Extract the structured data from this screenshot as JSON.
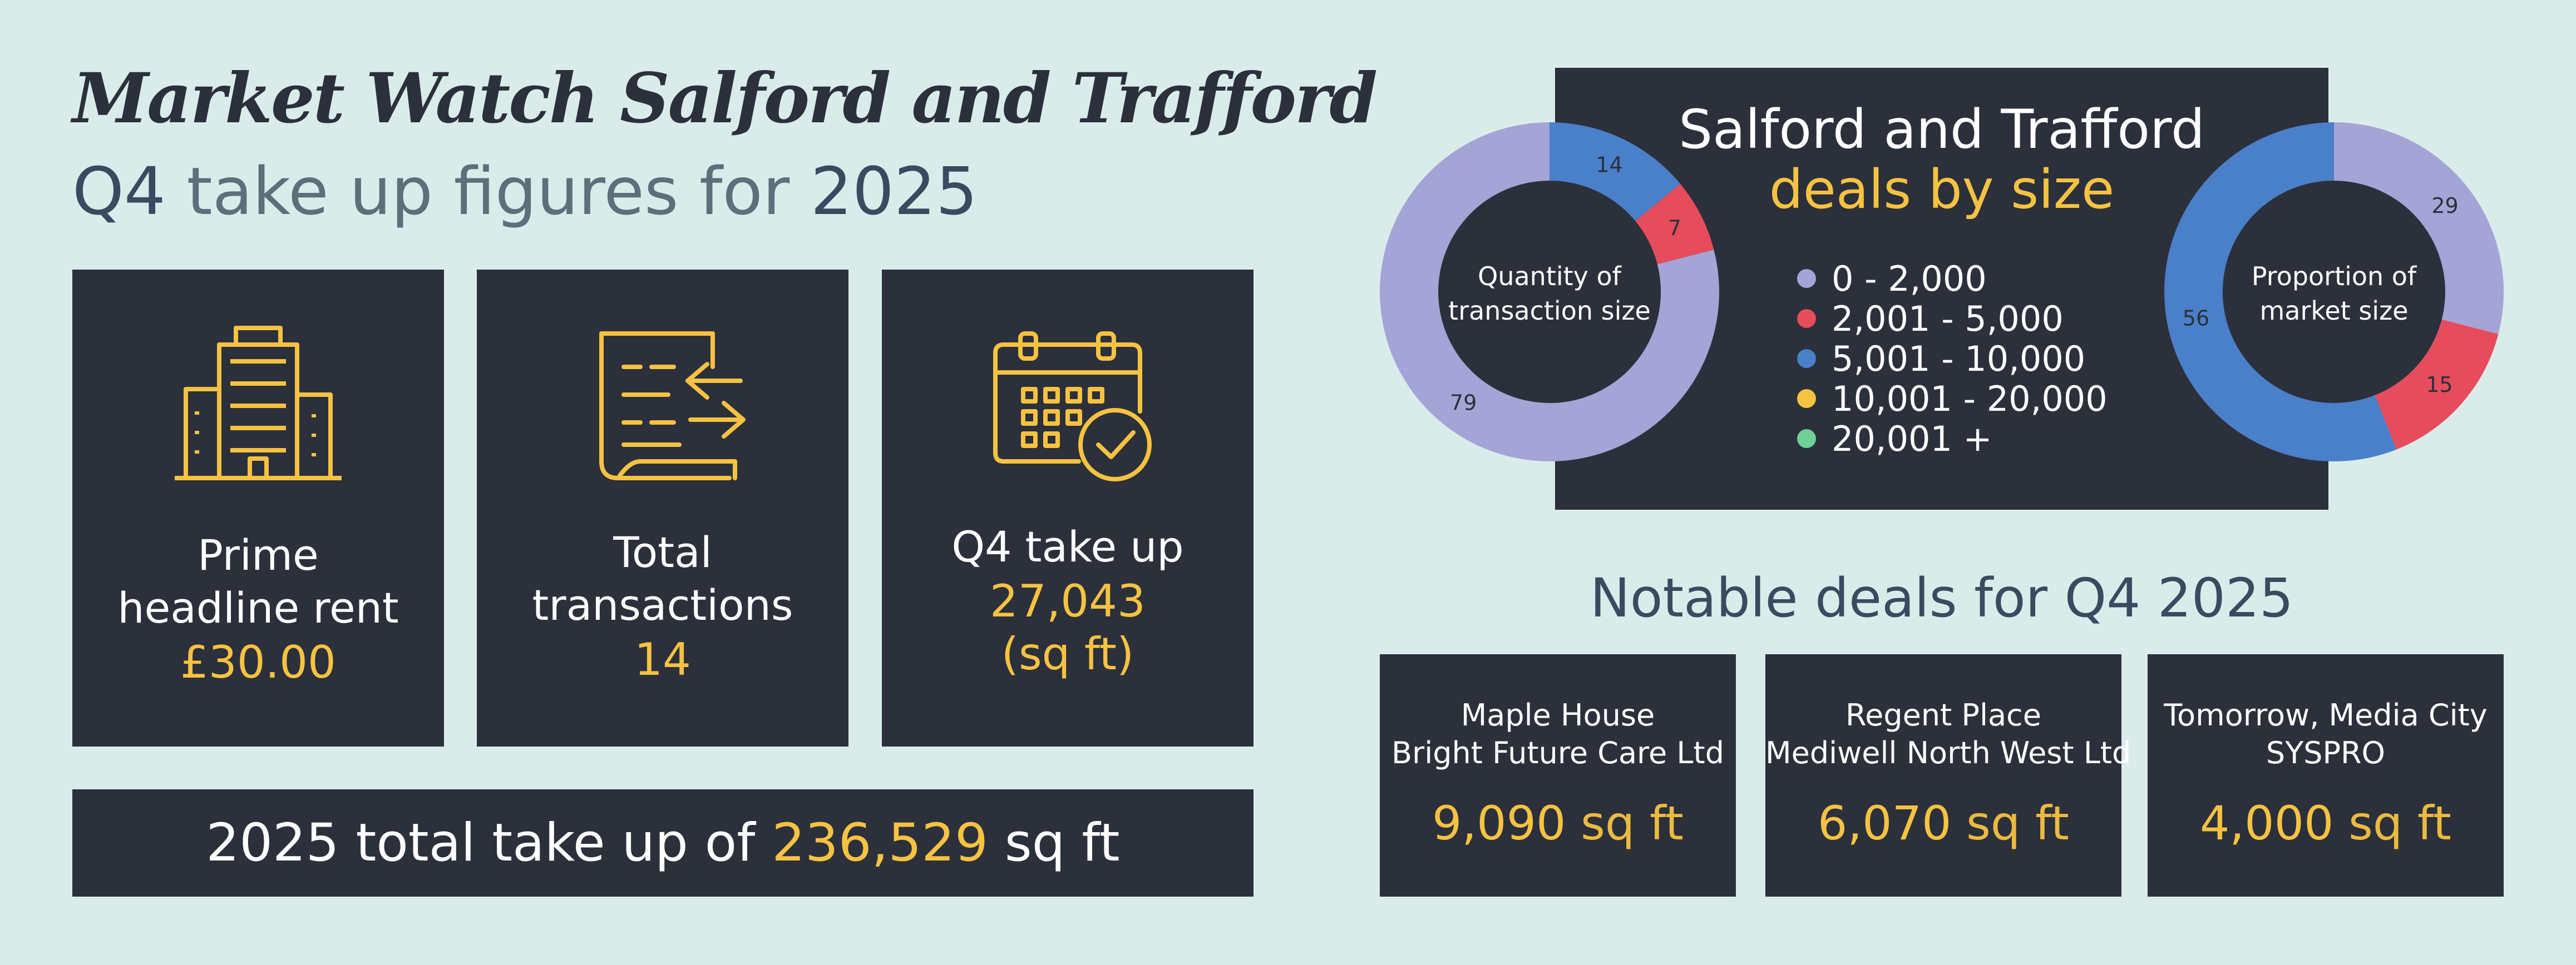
{
  "header": {
    "title": "Market Watch Salford and Trafford",
    "subtitle_quarter": "Q4",
    "subtitle_middle": " take up figures for ",
    "subtitle_year": "2025"
  },
  "cards": [
    {
      "icon": "office-building-icon",
      "line1": "Prime",
      "line2": "headline rent",
      "value": "£30.00"
    },
    {
      "icon": "document-transactions-icon",
      "line1": "Total",
      "line2": "transactions",
      "value": "14"
    },
    {
      "icon": "calendar-check-icon",
      "line1": "Q4 take up",
      "value": "27,043",
      "unit": "(sq ft)"
    }
  ],
  "total_bar": {
    "prefix": "2025 total take up of ",
    "value": "236,529",
    "suffix": " sq ft"
  },
  "size_panel": {
    "title_line1": "Salford and Trafford",
    "title_line2": "deals by size",
    "legend": [
      {
        "label": "0 - 2,000",
        "color": "#a5a4d6"
      },
      {
        "label": "2,001 - 5,000",
        "color": "#e64c5c"
      },
      {
        "label": "5,001 - 10,000",
        "color": "#4a7fc9"
      },
      {
        "label": "10,001 - 20,000",
        "color": "#f6c241"
      },
      {
        "label": "20,001 +",
        "color": "#6fcf97"
      }
    ]
  },
  "notable": {
    "title": "Notable deals for Q4 2025",
    "deals": [
      {
        "line1": "Maple House",
        "line2": "Bright Future Care Ltd",
        "value": "9,090",
        "unit": " sq ft"
      },
      {
        "line1": "Regent Place",
        "line2": "Mediwell North West Ltd",
        "value": "6,070",
        "unit": " sq ft"
      },
      {
        "line1": "Tomorrow, Media City",
        "line2": "SYSPRO",
        "value": "4,000",
        "unit": " sq ft"
      }
    ]
  },
  "chart_data": [
    {
      "type": "pie",
      "title": "Quantity of transaction size",
      "categories": [
        "0 - 2,000",
        "2,001 - 5,000",
        "5,001 - 10,000"
      ],
      "values": [
        79,
        7,
        14
      ],
      "colors": [
        "#a5a4d6",
        "#e64c5c",
        "#4a7fc9"
      ],
      "labels": [
        "79",
        "7",
        "14"
      ]
    },
    {
      "type": "pie",
      "title": "Proportion of market size",
      "categories": [
        "0 - 2,000",
        "2,001 - 5,000",
        "5,001 - 10,000"
      ],
      "values": [
        29,
        15,
        56
      ],
      "colors": [
        "#a5a4d6",
        "#e64c5c",
        "#4a7fc9"
      ],
      "labels": [
        "29",
        "15",
        "56"
      ]
    }
  ]
}
